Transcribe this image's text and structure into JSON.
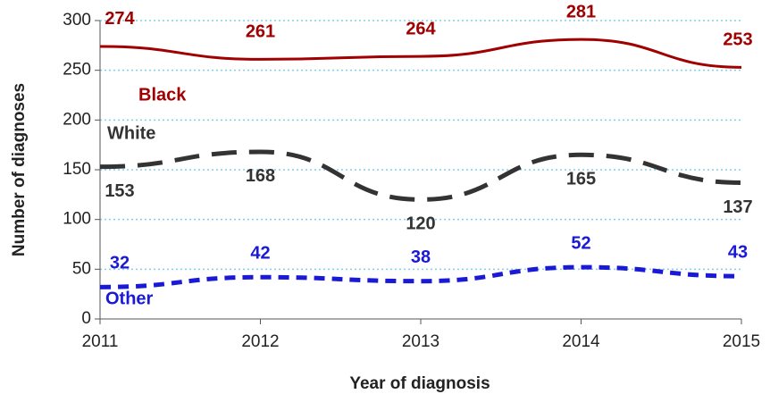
{
  "chart_data": {
    "type": "line",
    "x": [
      2011,
      2012,
      2013,
      2014,
      2015
    ],
    "xlim": [
      2011,
      2015
    ],
    "xticks": [
      2011,
      2012,
      2013,
      2014,
      2015
    ],
    "ylim": [
      0,
      300
    ],
    "yticks": [
      0,
      50,
      100,
      150,
      200,
      250,
      300
    ],
    "grid": true,
    "x_label": "Year of diagnosis",
    "y_label": "Number of diagnoses",
    "series": [
      {
        "name": "Black",
        "color": "#a00000",
        "values": [
          274,
          261,
          264,
          281,
          253
        ]
      },
      {
        "name": "White",
        "color": "#333333",
        "values": [
          153,
          168,
          120,
          165,
          137
        ]
      },
      {
        "name": "Other",
        "color": "#1a1ad6",
        "values": [
          32,
          42,
          38,
          52,
          43
        ]
      }
    ]
  }
}
